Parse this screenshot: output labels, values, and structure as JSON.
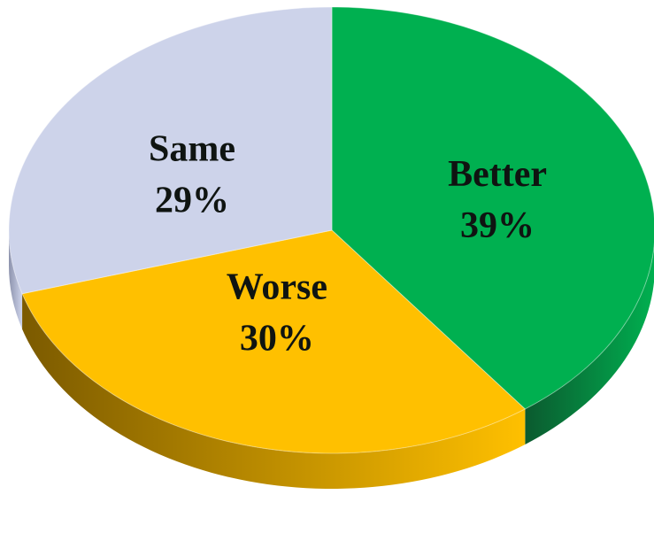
{
  "chart_data": {
    "type": "pie",
    "title": "",
    "slices": [
      {
        "name": "Better",
        "value": 39,
        "label": "39%",
        "color": "#00b050",
        "side_color": "#0b5a2f"
      },
      {
        "name": "Worse",
        "value": 30,
        "label": "30%",
        "color": "#ffc000",
        "side_color": "#7b5a00"
      },
      {
        "name": "Same",
        "value": 29,
        "label": "29%",
        "color": "#cdd3ea",
        "side_color": "#8d93ad"
      }
    ],
    "legend": "none"
  }
}
